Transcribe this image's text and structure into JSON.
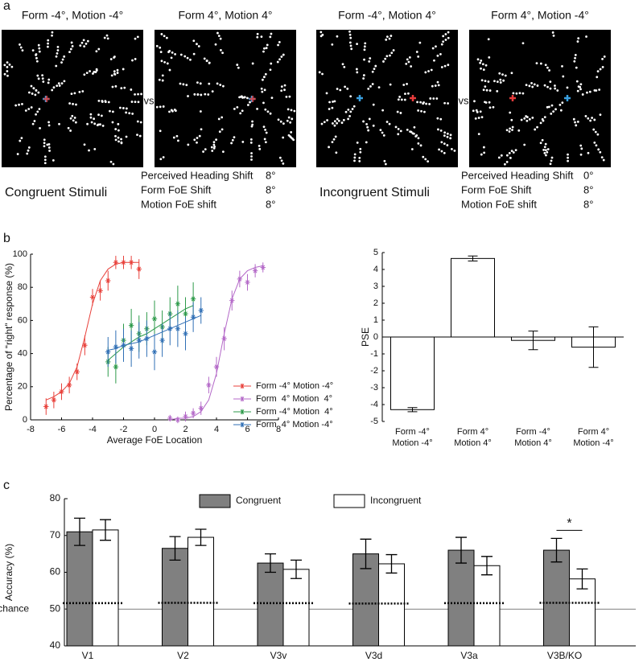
{
  "panel_labels": [
    "a",
    "b",
    "c"
  ],
  "panel_a": {
    "stimuli": [
      "Form -4°, Motion -4°",
      "Form 4°, Motion 4°",
      "Form -4°, Motion 4°",
      "Form 4°, Motion -4°"
    ],
    "vs": [
      "vs",
      "vs"
    ],
    "conditions": [
      {
        "title": "Congruent Stimuli",
        "rows": [
          {
            "label": "Perceived Heading Shift",
            "value": "8°"
          },
          {
            "label": "Form FoE Shift",
            "value": "8°"
          },
          {
            "label": "Motion FoE shift",
            "value": "8°"
          }
        ]
      },
      {
        "title": "Incongruent Stimuli",
        "rows": [
          {
            "label": "Perceived Heading Shift",
            "value": "0°"
          },
          {
            "label": "Form FoE Shift",
            "value": "8°"
          },
          {
            "label": "Motion FoE shift",
            "value": "8°"
          }
        ]
      }
    ]
  },
  "chart_data": [
    {
      "type": "line",
      "x_label": "Average FoE Location",
      "y_label": "Percentage of “right” response (%)",
      "xlim": [
        -8,
        8
      ],
      "xticks": [
        -8,
        -6,
        -4,
        -2,
        0,
        2,
        4,
        6,
        8
      ],
      "ylim": [
        0,
        100
      ],
      "yticks": [
        0,
        20,
        40,
        60,
        80,
        100
      ],
      "legend": "lower right",
      "series": [
        {
          "name": "Form -4° Motion -4°",
          "color": "#e8413b",
          "x": [
            -7,
            -6.5,
            -6,
            -5.5,
            -5,
            -4.5,
            -4,
            -3.5,
            -3,
            -2.5,
            -2,
            -1.5,
            -1
          ],
          "values": [
            8,
            12,
            17,
            21,
            29,
            45,
            74,
            78,
            84,
            95,
            95,
            95,
            91
          ],
          "errors": [
            5,
            5,
            5,
            5,
            5,
            6,
            5,
            6,
            6,
            4,
            4,
            4,
            6
          ],
          "fit": [
            12,
            14,
            17,
            22,
            32,
            50,
            70,
            84,
            91,
            94,
            95,
            95,
            95
          ]
        },
        {
          "name": "Form  4° Motion  4°",
          "color": "#b469c8",
          "x": [
            1,
            1.5,
            2,
            2.5,
            3,
            3.5,
            4,
            4.5,
            5,
            5.5,
            6,
            6.5,
            7
          ],
          "values": [
            1,
            0,
            2,
            4,
            7,
            21,
            32,
            49,
            72,
            85,
            83,
            90,
            92
          ],
          "errors": [
            2,
            2,
            3,
            3,
            4,
            5,
            6,
            7,
            6,
            5,
            5,
            4,
            3
          ],
          "fit": [
            0,
            1,
            1,
            2,
            5,
            12,
            28,
            52,
            73,
            85,
            90,
            92,
            93
          ]
        },
        {
          "name": "Form -4° Motion  4°",
          "color": "#2d9a4a",
          "x": [
            -3,
            -2.5,
            -2,
            -1.5,
            -1,
            -0.5,
            0,
            0.5,
            1,
            1.5,
            2,
            2.5
          ],
          "values": [
            35,
            32,
            48,
            57,
            52,
            55,
            61,
            56,
            64,
            70,
            64,
            73
          ],
          "errors": [
            9,
            10,
            10,
            10,
            11,
            10,
            11,
            10,
            10,
            11,
            10,
            10
          ],
          "fit": [
            36,
            40,
            44,
            47,
            50,
            52,
            55,
            58,
            61,
            64,
            67,
            69
          ]
        },
        {
          "name": "Form  4° Motion -4°",
          "color": "#2f6fb5",
          "x": [
            -3,
            -2.5,
            -2,
            -1.5,
            -1,
            -0.5,
            0,
            0.5,
            1,
            1.5,
            2,
            2.5,
            3
          ],
          "values": [
            41,
            44,
            45,
            43,
            48,
            49,
            41,
            48,
            55,
            55,
            52,
            62,
            66
          ],
          "errors": [
            9,
            10,
            10,
            11,
            11,
            11,
            11,
            10,
            10,
            11,
            10,
            9,
            8
          ],
          "fit": [
            42,
            43,
            45,
            46,
            47,
            49,
            51,
            53,
            55,
            57,
            59,
            61,
            63
          ]
        }
      ]
    },
    {
      "type": "bar",
      "y_label": "PSE",
      "color": "#ffffff",
      "categories": [
        [
          "Form -4°",
          "Motion -4°"
        ],
        [
          "Form 4°",
          "Motion 4°"
        ],
        [
          "Form -4°",
          "Motion 4°"
        ],
        [
          "Form 4°",
          "Motion -4°"
        ]
      ],
      "values": [
        -4.3,
        4.65,
        -0.2,
        -0.6
      ],
      "errors": [
        0.12,
        0.15,
        0.55,
        1.2
      ],
      "ylim": [
        -5,
        5
      ],
      "yticks": [
        -5,
        -4,
        -3,
        -2,
        -1,
        0,
        1,
        2,
        3,
        4,
        5
      ]
    },
    {
      "type": "grouped_bar",
      "y_label": "Accuracy (%)",
      "categories": [
        "V1",
        "V2",
        "V3v",
        "V3d",
        "V3a",
        "V3B/KO"
      ],
      "series": [
        {
          "name": "Congruent",
          "color": "#808080",
          "values": [
            71,
            66.5,
            62.5,
            65,
            66,
            66
          ],
          "errors": [
            3.7,
            3.2,
            2.5,
            4,
            3.5,
            3.2
          ]
        },
        {
          "name": "Incongruent",
          "color": "#ffffff",
          "values": [
            71.5,
            69.5,
            60.8,
            62.3,
            61.8,
            58.2
          ],
          "errors": [
            2.8,
            2.2,
            2.5,
            2.5,
            2.5,
            2.7
          ]
        }
      ],
      "thresholds": [
        51.6,
        51.7,
        51.6,
        51.5,
        51.6,
        51.7
      ],
      "reference_line": {
        "value": 50,
        "label": "chance"
      },
      "annotations": [
        {
          "text": "*",
          "category": "V3B/KO"
        }
      ],
      "ylim": [
        40,
        80
      ],
      "yticks": [
        40,
        50,
        60,
        70,
        80
      ],
      "legend": "top"
    }
  ]
}
